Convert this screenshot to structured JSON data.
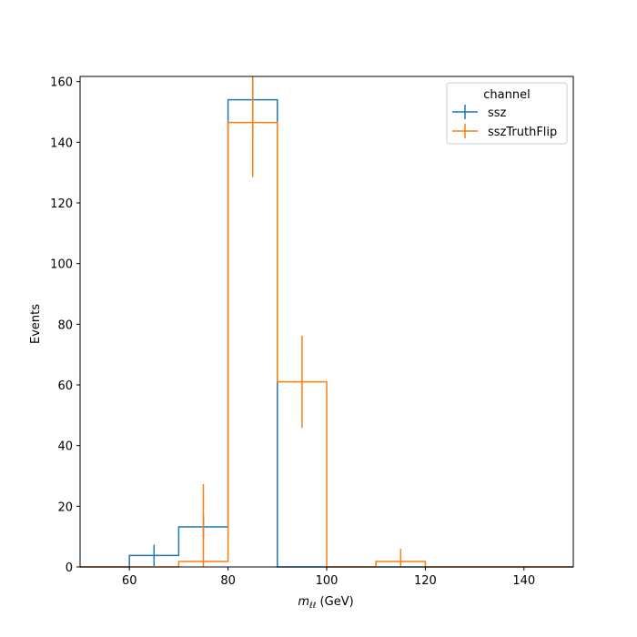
{
  "chart_data": {
    "type": "histogram",
    "xlabel_main": "m",
    "xlabel_sub": "ℓℓ",
    "xlabel_unit": " (GeV)",
    "ylabel": "Events",
    "xlim": [
      50,
      150
    ],
    "ylim": [
      0,
      161.7
    ],
    "xticks": [
      60,
      80,
      100,
      120,
      140
    ],
    "yticks": [
      0,
      20,
      40,
      60,
      80,
      100,
      120,
      140,
      160
    ],
    "bin_edges": [
      50,
      60,
      70,
      80,
      90,
      100,
      110,
      120,
      130,
      140,
      150
    ],
    "legend": {
      "title": "channel",
      "loc": "upper right"
    },
    "series": [
      {
        "name": "ssz",
        "color": "#1f77b4",
        "values": [
          0,
          3.8,
          13.2,
          154.0,
          0,
          0,
          0,
          0,
          0,
          0
        ],
        "errors": [
          0,
          3.5,
          3.8,
          12.4,
          0,
          0,
          0,
          0,
          0,
          0
        ]
      },
      {
        "name": "sszTruthFlip",
        "color": "#ff7f0e",
        "values": [
          0,
          0,
          1.8,
          146.5,
          61.0,
          0,
          1.8,
          0,
          0,
          0
        ],
        "errors": [
          0,
          0,
          25.5,
          18.0,
          15.2,
          0,
          4.2,
          0,
          0,
          0
        ]
      }
    ]
  }
}
